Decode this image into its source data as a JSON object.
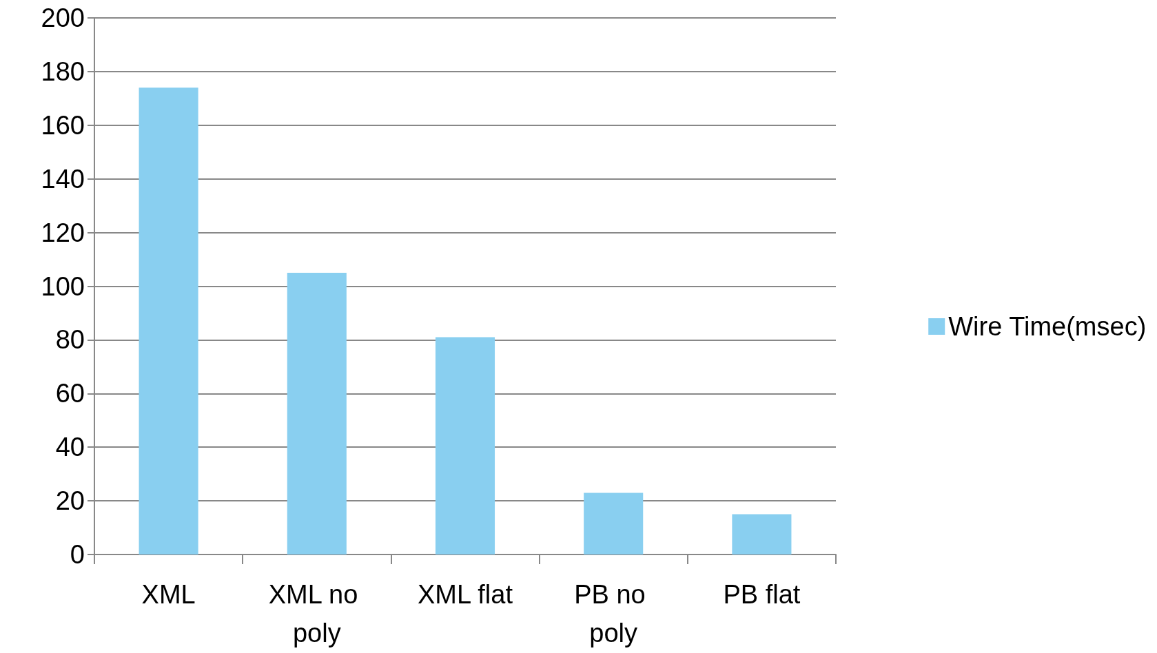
{
  "chart_data": {
    "type": "bar",
    "categories": [
      "XML",
      "XML no poly",
      "XML flat",
      "PB no poly",
      "PB flat"
    ],
    "series": [
      {
        "name": "Wire Time(msec)",
        "color": "#89cff0",
        "values": [
          174,
          105,
          81,
          23,
          15
        ]
      }
    ],
    "ylim": [
      0,
      200
    ],
    "yticks": [
      0,
      20,
      40,
      60,
      80,
      100,
      120,
      140,
      160,
      180,
      200
    ],
    "grid": "y",
    "legend": "right"
  }
}
